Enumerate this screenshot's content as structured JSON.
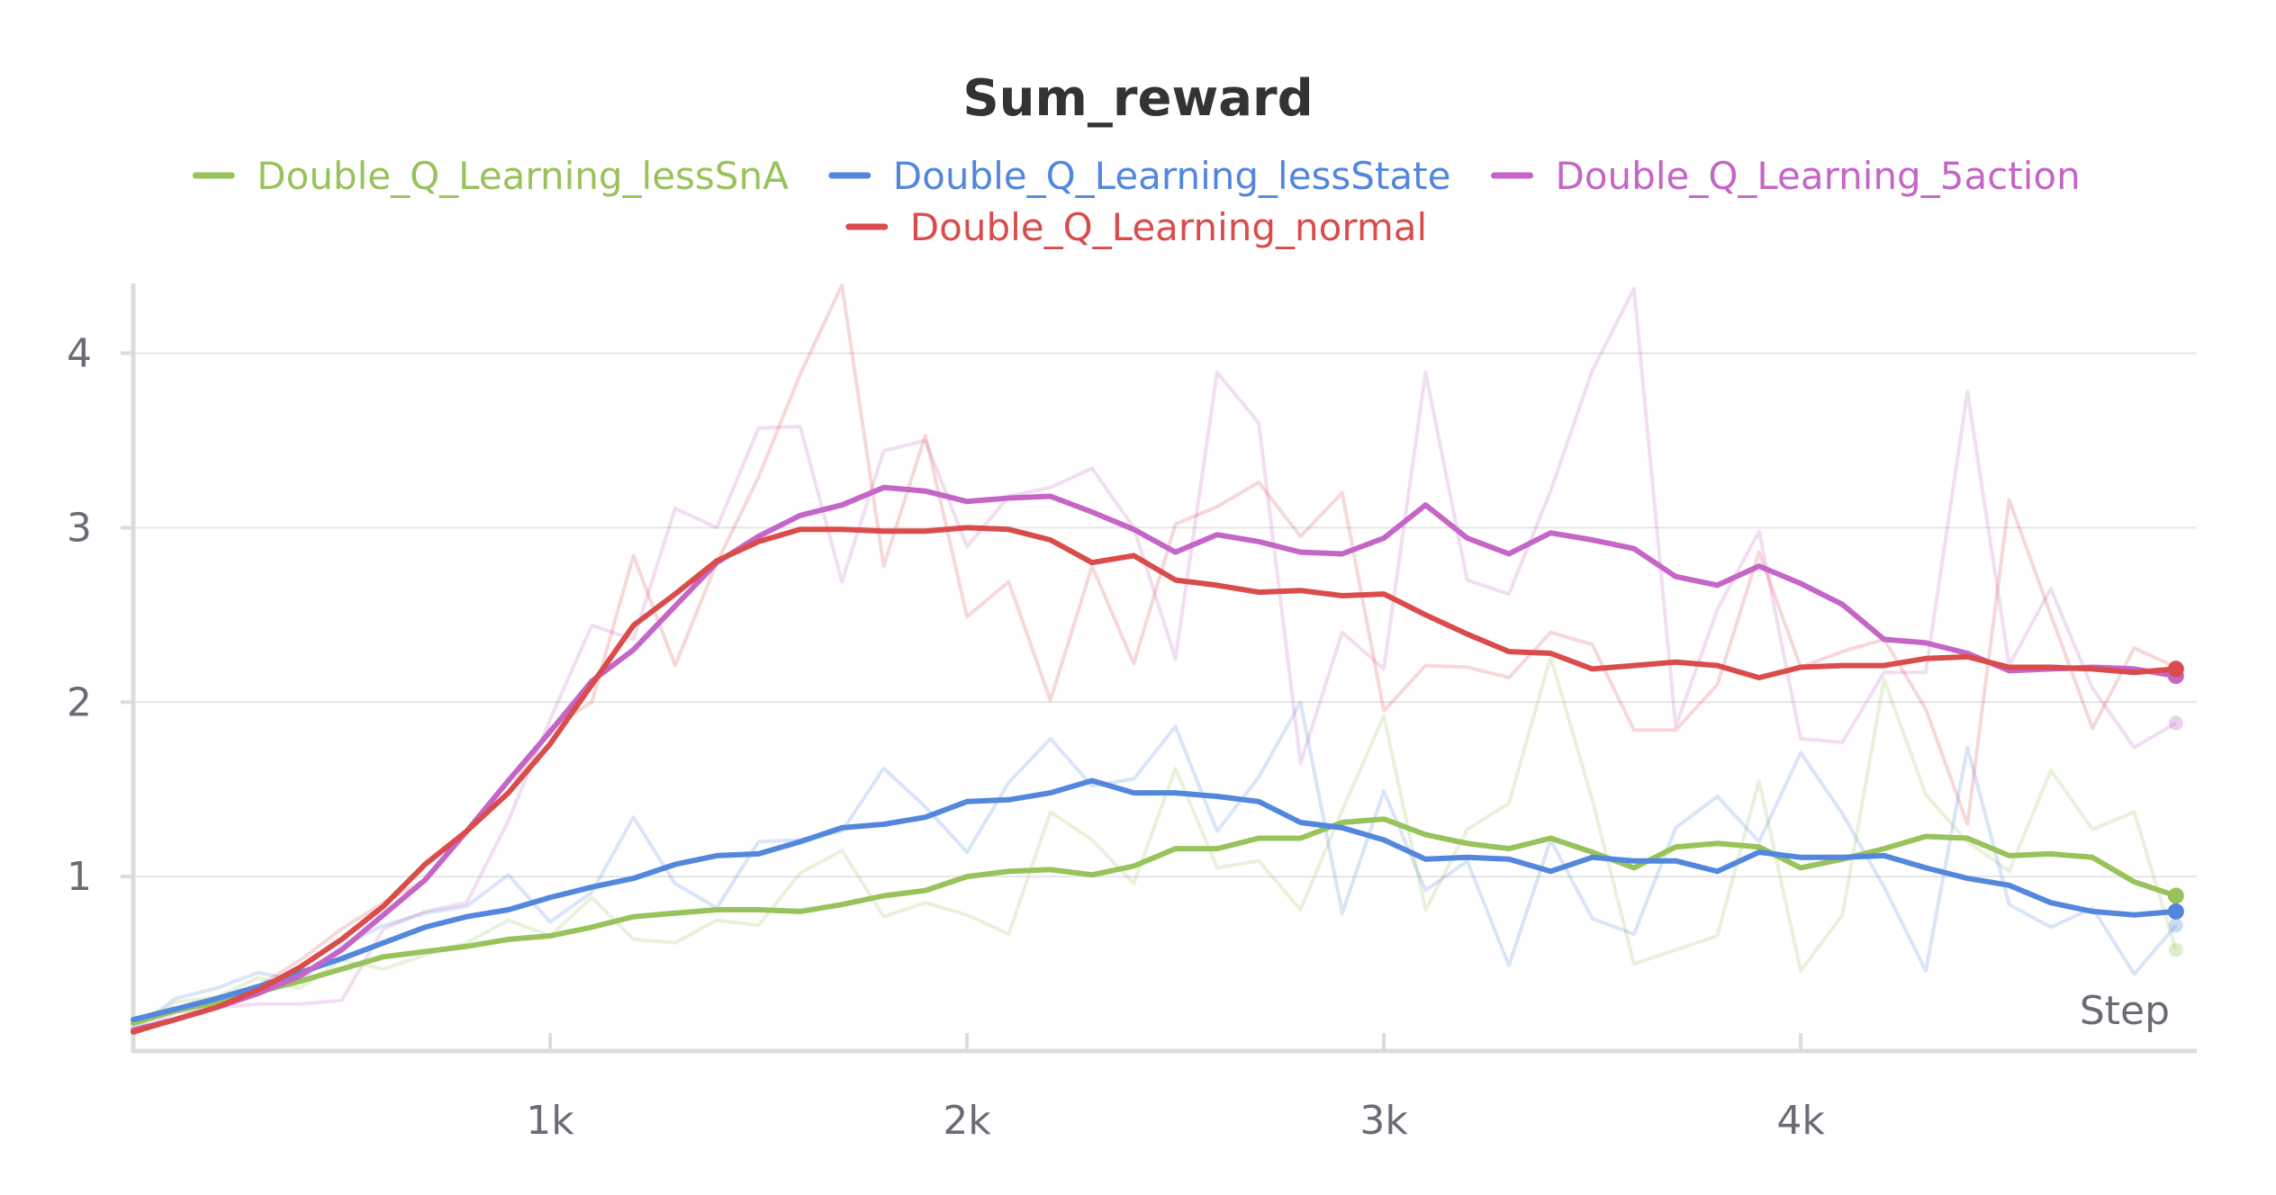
{
  "chart_data": {
    "type": "line",
    "title": "Sum_reward",
    "xlabel": "Step",
    "ylabel": "",
    "xlim": [
      0,
      4950
    ],
    "ylim": [
      0,
      4.4
    ],
    "x_ticks": [
      {
        "value": 1000,
        "label": "1k"
      },
      {
        "value": 2000,
        "label": "2k"
      },
      {
        "value": 3000,
        "label": "3k"
      },
      {
        "value": 4000,
        "label": "4k"
      }
    ],
    "y_ticks": [
      {
        "value": 1,
        "label": "1"
      },
      {
        "value": 2,
        "label": "2"
      },
      {
        "value": 3,
        "label": "3"
      },
      {
        "value": 4,
        "label": "4"
      }
    ],
    "grid": "horizontal",
    "legend_position": "top",
    "x": [
      0,
      100,
      200,
      300,
      400,
      500,
      600,
      700,
      800,
      900,
      1000,
      1100,
      1200,
      1300,
      1400,
      1500,
      1600,
      1700,
      1800,
      1900,
      2000,
      2100,
      2200,
      2300,
      2400,
      2500,
      2600,
      2700,
      2800,
      2900,
      3000,
      3100,
      3200,
      3300,
      3400,
      3500,
      3600,
      3700,
      3800,
      3900,
      4000,
      4100,
      4200,
      4300,
      4400,
      4500,
      4600,
      4700,
      4800,
      4900
    ],
    "series": [
      {
        "name": "Double_Q_Learning_lessSnA",
        "color": "#97c35a",
        "values": [
          0.16,
          0.23,
          0.28,
          0.34,
          0.4,
          0.47,
          0.54,
          0.57,
          0.6,
          0.64,
          0.66,
          0.71,
          0.77,
          0.79,
          0.81,
          0.81,
          0.8,
          0.84,
          0.89,
          0.92,
          1.0,
          1.03,
          1.04,
          1.01,
          1.06,
          1.16,
          1.16,
          1.22,
          1.22,
          1.31,
          1.33,
          1.24,
          1.19,
          1.16,
          1.22,
          1.14,
          1.05,
          1.17,
          1.19,
          1.17,
          1.05,
          1.1,
          1.16,
          1.23,
          1.22,
          1.12,
          1.13,
          1.11,
          0.97,
          0.89
        ],
        "raw": [
          0.1,
          0.28,
          0.31,
          0.42,
          0.36,
          0.52,
          0.47,
          0.55,
          0.62,
          0.75,
          0.66,
          0.88,
          0.64,
          0.62,
          0.75,
          0.72,
          1.02,
          1.15,
          0.77,
          0.85,
          0.78,
          0.67,
          1.37,
          1.21,
          0.96,
          1.62,
          1.05,
          1.09,
          0.81,
          1.38,
          1.92,
          0.81,
          1.27,
          1.42,
          2.26,
          1.44,
          0.5,
          0.58,
          0.66,
          1.55,
          0.46,
          0.78,
          2.13,
          1.47,
          1.2,
          1.03,
          1.61,
          1.27,
          1.37,
          0.58
        ]
      },
      {
        "name": "Double_Q_Learning_lessState",
        "color": "#5387dd",
        "values": [
          0.18,
          0.24,
          0.3,
          0.37,
          0.45,
          0.53,
          0.62,
          0.71,
          0.77,
          0.81,
          0.88,
          0.94,
          0.99,
          1.07,
          1.12,
          1.13,
          1.2,
          1.28,
          1.3,
          1.34,
          1.43,
          1.44,
          1.48,
          1.55,
          1.48,
          1.48,
          1.46,
          1.43,
          1.31,
          1.28,
          1.21,
          1.1,
          1.11,
          1.1,
          1.03,
          1.11,
          1.09,
          1.09,
          1.03,
          1.14,
          1.11,
          1.11,
          1.12,
          1.05,
          0.99,
          0.95,
          0.85,
          0.8,
          0.78,
          0.8
        ],
        "raw": [
          0.12,
          0.3,
          0.36,
          0.45,
          0.4,
          0.6,
          0.72,
          0.79,
          0.83,
          1.01,
          0.74,
          0.91,
          1.34,
          0.96,
          0.82,
          1.2,
          1.21,
          1.26,
          1.62,
          1.4,
          1.14,
          1.54,
          1.79,
          1.52,
          1.56,
          1.86,
          1.26,
          1.57,
          2.0,
          0.79,
          1.49,
          0.92,
          1.09,
          0.49,
          1.21,
          0.76,
          0.67,
          1.28,
          1.46,
          1.2,
          1.71,
          1.36,
          0.94,
          0.46,
          1.74,
          0.84,
          0.71,
          0.82,
          0.44,
          0.72
        ]
      },
      {
        "name": "Double_Q_Learning_5action",
        "color": "#c565c7",
        "values": [
          0.12,
          0.18,
          0.25,
          0.33,
          0.43,
          0.58,
          0.78,
          0.98,
          1.26,
          1.55,
          1.83,
          2.12,
          2.3,
          2.55,
          2.8,
          2.95,
          3.07,
          3.13,
          3.23,
          3.21,
          3.15,
          3.17,
          3.18,
          3.09,
          2.99,
          2.86,
          2.96,
          2.92,
          2.86,
          2.85,
          2.94,
          3.13,
          2.94,
          2.85,
          2.97,
          2.93,
          2.88,
          2.72,
          2.67,
          2.78,
          2.68,
          2.56,
          2.36,
          2.34,
          2.28,
          2.18,
          2.19,
          2.2,
          2.19,
          2.15
        ],
        "raw": [
          0.1,
          0.22,
          0.25,
          0.27,
          0.27,
          0.29,
          0.7,
          0.8,
          0.85,
          1.32,
          1.9,
          2.44,
          2.36,
          3.11,
          3.0,
          3.57,
          3.58,
          2.69,
          3.44,
          3.5,
          2.89,
          3.18,
          3.23,
          3.34,
          3.0,
          2.25,
          3.89,
          3.6,
          1.65,
          2.4,
          2.19,
          3.89,
          2.7,
          2.62,
          3.21,
          3.9,
          4.37,
          1.86,
          2.53,
          2.98,
          1.79,
          1.77,
          2.17,
          2.17,
          3.78,
          2.21,
          2.65,
          2.08,
          1.74,
          1.88
        ]
      },
      {
        "name": "Double_Q_Learning_normal",
        "color": "#da4c4c",
        "values": [
          0.11,
          0.18,
          0.25,
          0.35,
          0.48,
          0.64,
          0.83,
          1.07,
          1.26,
          1.48,
          1.76,
          2.1,
          2.44,
          2.62,
          2.81,
          2.92,
          2.99,
          2.99,
          2.98,
          2.98,
          3.0,
          2.99,
          2.93,
          2.8,
          2.84,
          2.7,
          2.67,
          2.63,
          2.64,
          2.61,
          2.62,
          2.5,
          2.39,
          2.29,
          2.28,
          2.19,
          2.21,
          2.23,
          2.21,
          2.14,
          2.2,
          2.21,
          2.21,
          2.25,
          2.26,
          2.2,
          2.2,
          2.19,
          2.17,
          2.19
        ],
        "raw": [
          0.1,
          0.18,
          0.26,
          0.37,
          0.52,
          0.7,
          0.85,
          0.98,
          1.26,
          1.48,
          1.85,
          2.0,
          2.84,
          2.21,
          2.8,
          3.29,
          3.88,
          4.39,
          2.78,
          3.53,
          2.49,
          2.69,
          2.01,
          2.78,
          2.22,
          3.02,
          3.12,
          3.26,
          2.95,
          3.2,
          1.95,
          2.21,
          2.2,
          2.14,
          2.4,
          2.33,
          1.84,
          1.84,
          2.1,
          2.86,
          2.2,
          2.29,
          2.36,
          1.96,
          1.3,
          3.16,
          2.5,
          1.85,
          2.31,
          2.2
        ]
      }
    ]
  }
}
